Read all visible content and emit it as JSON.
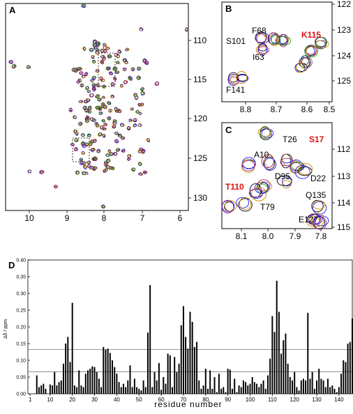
{
  "panels": {
    "A": {
      "label": "A",
      "x_ticks": [
        "10",
        "9",
        "8",
        "7",
        "6"
      ],
      "y_ticks": [
        "110",
        "115",
        "120",
        "125",
        "130"
      ]
    },
    "B": {
      "label": "B",
      "x_ticks": [
        "8.8",
        "8.7",
        "8.6",
        "8.5"
      ],
      "y_ticks": [
        "122",
        "123",
        "124",
        "125"
      ],
      "residue_labels": [
        {
          "text": "F68",
          "highlight": false
        },
        {
          "text": "S101",
          "highlight": false
        },
        {
          "text": "I63",
          "highlight": false
        },
        {
          "text": "K115",
          "highlight": true
        },
        {
          "text": "F141",
          "highlight": false
        }
      ]
    },
    "C": {
      "label": "C",
      "x_ticks": [
        "8.1",
        "8.0",
        "7.9",
        "7.8"
      ],
      "y_ticks": [
        "112",
        "113",
        "114",
        "115"
      ],
      "residue_labels": [
        {
          "text": "T26",
          "highlight": false
        },
        {
          "text": "S17",
          "highlight": true
        },
        {
          "text": "A10",
          "highlight": false
        },
        {
          "text": "D95",
          "highlight": false
        },
        {
          "text": "D22",
          "highlight": false
        },
        {
          "text": "T110",
          "highlight": true
        },
        {
          "text": "Q135",
          "highlight": false
        },
        {
          "text": "T79",
          "highlight": false
        },
        {
          "text": "E127",
          "highlight": false
        }
      ]
    },
    "D": {
      "label": "D",
      "ylabel": "Δδ / ppm",
      "xlabel": "residue number"
    }
  },
  "colors": {
    "highlight": "#e01010",
    "spectra": [
      "#000000",
      "#1a1aff",
      "#d08a00",
      "#9a2a8a",
      "#2a9a2a"
    ]
  },
  "chart_data": {
    "type": "bar",
    "title": "",
    "xlabel": "residue number",
    "ylabel": "Δδ / ppm",
    "xlim": [
      0,
      146
    ],
    "ylim": [
      0,
      0.4
    ],
    "x_ticks": [
      1,
      10,
      20,
      30,
      40,
      50,
      60,
      70,
      80,
      90,
      100,
      110,
      120,
      130,
      140
    ],
    "y_ticks": [
      0.0,
      0.05,
      0.1,
      0.15,
      0.2,
      0.25,
      0.3,
      0.35,
      0.4
    ],
    "y_tick_labels": [
      "0.00",
      "0.05",
      "0.10",
      "0.15",
      "0.20",
      "0.25",
      "0.30",
      "0.35",
      "0.40"
    ],
    "thresholds": [
      0.066,
      0.132
    ],
    "residues": [
      1,
      2,
      3,
      4,
      5,
      6,
      7,
      8,
      9,
      10,
      11,
      12,
      13,
      14,
      15,
      16,
      17,
      18,
      19,
      20,
      21,
      22,
      23,
      24,
      25,
      26,
      27,
      28,
      29,
      30,
      31,
      32,
      33,
      34,
      35,
      36,
      37,
      38,
      39,
      40,
      41,
      42,
      43,
      44,
      45,
      46,
      47,
      48,
      49,
      50,
      51,
      52,
      53,
      54,
      55,
      56,
      57,
      58,
      59,
      60,
      61,
      62,
      63,
      64,
      65,
      66,
      67,
      68,
      69,
      70,
      71,
      72,
      73,
      74,
      75,
      76,
      77,
      78,
      79,
      80,
      81,
      82,
      83,
      84,
      85,
      86,
      87,
      88,
      89,
      90,
      91,
      92,
      93,
      94,
      95,
      96,
      97,
      98,
      99,
      100,
      101,
      102,
      103,
      104,
      105,
      106,
      107,
      108,
      109,
      110,
      111,
      112,
      113,
      114,
      115,
      116,
      117,
      118,
      119,
      120,
      121,
      122,
      123,
      124,
      125,
      126,
      127,
      128,
      129,
      130,
      131,
      132,
      133,
      134,
      135,
      136,
      137,
      138,
      139,
      140,
      141,
      142,
      143,
      144,
      145,
      146
    ],
    "values": [
      0,
      0,
      0,
      0.055,
      0.02,
      0.025,
      0.03,
      0.015,
      0,
      0.028,
      0.025,
      0.065,
      0.025,
      0.035,
      0.04,
      0.09,
      0.15,
      0.17,
      0.095,
      0.272,
      0.025,
      0.02,
      0.07,
      0.025,
      0.02,
      0.06,
      0.07,
      0.075,
      0.082,
      0.08,
      0.065,
      0.045,
      0.02,
      0.14,
      0.132,
      0.135,
      0.122,
      0.1,
      0.08,
      0.06,
      0.035,
      0.02,
      0.03,
      0.02,
      0.04,
      0.085,
      0.02,
      0.045,
      0.02,
      0.015,
      0.01,
      0.04,
      0.02,
      0.183,
      0.325,
      0.02,
      0.065,
      0.04,
      0.092,
      0.012,
      0.05,
      0.03,
      0.12,
      0.115,
      0.02,
      0.11,
      0.065,
      0.09,
      0.205,
      0.262,
      0.17,
      0.135,
      0.245,
      0.215,
      0.14,
      0.155,
      0.04,
      0.015,
      0.025,
      0.075,
      0.015,
      0.07,
      0.015,
      0.05,
      0.005,
      0.06,
      0.015,
      0.02,
      0.005,
      0.075,
      0.072,
      0.015,
      0.045,
      0.005,
      0.025,
      0.02,
      0.04,
      0.035,
      0.025,
      0.03,
      0.05,
      0.035,
      0.03,
      0.02,
      0.03,
      0.04,
      0.015,
      0.055,
      0.105,
      0.232,
      0.185,
      0.338,
      0.245,
      0.12,
      0.16,
      0.18,
      0.09,
      0.05,
      0.04,
      0.065,
      0.02,
      0.01,
      0.04,
      0.045,
      0.04,
      0.242,
      0.045,
      0.065,
      0.015,
      0.04,
      0.075,
      0.045,
      0.04,
      0.02,
      0.045,
      0.02,
      0.025,
      0.015,
      0.005,
      0.02,
      0.06,
      0.1,
      0.095,
      0.15,
      0.155,
      0.225
    ]
  }
}
